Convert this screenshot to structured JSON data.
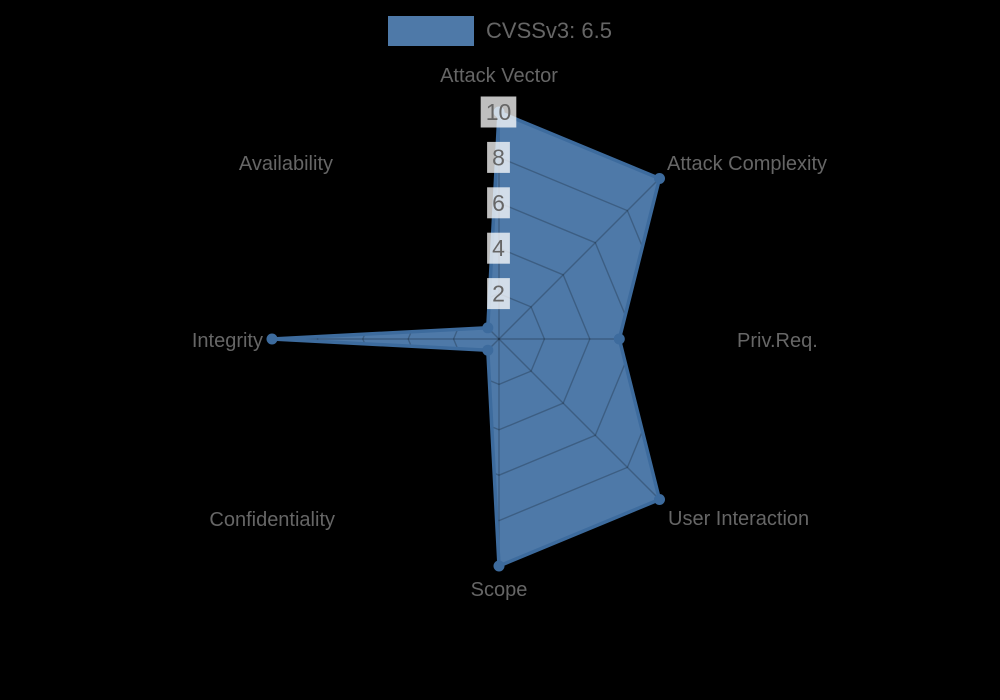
{
  "chart": {
    "legend": {
      "label": "CVSSv3: 6.5"
    },
    "colors": {
      "series_fill": "#4e79a8",
      "series_border": "#3d6b9d",
      "marker": "#3d6b9d",
      "grid_line": "rgba(0,0,0,0.22)",
      "tick_backdrop": "rgba(255,255,255,0.75)",
      "text": "#666666",
      "background": "#000000"
    }
  },
  "chart_data": {
    "type": "radar",
    "title": "CVSSv3: 6.5",
    "categories": [
      "Attack Vector",
      "Attack Complexity",
      "Priv.Req.",
      "User Interaction",
      "Scope",
      "Confidentiality",
      "Integrity",
      "Availability"
    ],
    "series": [
      {
        "name": "CVSSv3: 6.5",
        "values": [
          10,
          10,
          5.3,
          10,
          10,
          0.7,
          10,
          0.7
        ]
      }
    ],
    "ticks": [
      2,
      4,
      6,
      8,
      10
    ],
    "rmin": 0,
    "rmax": 10,
    "grid": "polygon-web",
    "angle_lines": true,
    "legend_position": "top",
    "start_angle_deg": -90,
    "direction": "clockwise"
  }
}
